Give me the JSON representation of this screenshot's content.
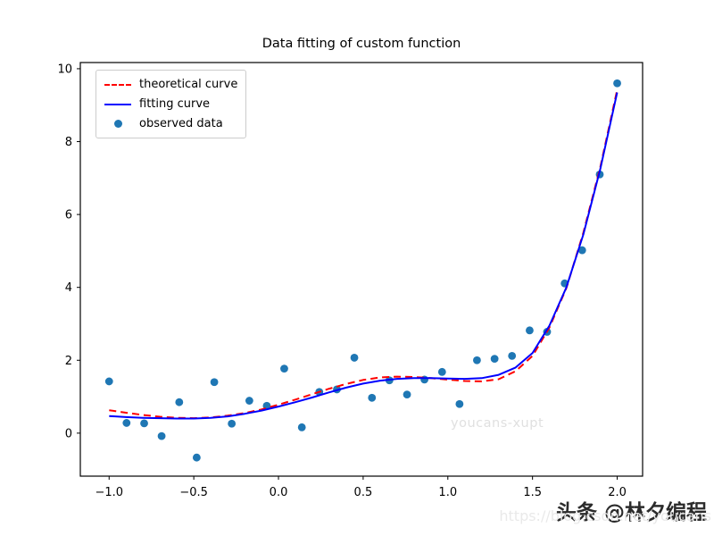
{
  "figure": {
    "title": "Data fitting of custom function"
  },
  "colors": {
    "theoretical_curve": "#ff0000",
    "fitting_curve": "#0000ff",
    "observed_data": "#1f77b4",
    "axis": "#000000",
    "legend_border": "#cccccc",
    "watermark_gray": "#e0e0e0"
  },
  "watermarks": {
    "plot": "youcans-xupt",
    "url": "https://blog.csdn.net/youcans",
    "badge": "头条 @林夕编程"
  },
  "chart_data": {
    "type": "line",
    "title": "Data fitting of custom function",
    "xlabel": "",
    "ylabel": "",
    "xlim": [
      -1.17,
      2.15
    ],
    "ylim": [
      -1.18,
      10.17
    ],
    "x_tick_values": [
      -1.0,
      -0.5,
      0.0,
      0.5,
      1.0,
      1.5,
      2.0
    ],
    "x_tick_labels": [
      "−1.0",
      "−0.5",
      "0.0",
      "0.5",
      "1.0",
      "1.5",
      "2.0"
    ],
    "y_tick_values": [
      0,
      2,
      4,
      6,
      8,
      10
    ],
    "y_tick_labels": [
      "0",
      "2",
      "4",
      "6",
      "8",
      "10"
    ],
    "grid": false,
    "legend_position": "upper left",
    "series": [
      {
        "name": "theoretical curve",
        "type": "line",
        "style": "dashed",
        "color": "#ff0000",
        "x": [
          -1.0,
          -0.9,
          -0.8,
          -0.7,
          -0.6,
          -0.5,
          -0.4,
          -0.3,
          -0.2,
          -0.1,
          0.0,
          0.1,
          0.2,
          0.3,
          0.4,
          0.5,
          0.6,
          0.7,
          0.8,
          0.9,
          1.0,
          1.1,
          1.2,
          1.3,
          1.4,
          1.5,
          1.6,
          1.7,
          1.8,
          1.9,
          2.0
        ],
        "y": [
          0.63,
          0.56,
          0.5,
          0.45,
          0.42,
          0.41,
          0.43,
          0.48,
          0.55,
          0.65,
          0.78,
          0.92,
          1.07,
          1.22,
          1.35,
          1.46,
          1.53,
          1.55,
          1.54,
          1.51,
          1.47,
          1.43,
          1.42,
          1.48,
          1.7,
          2.12,
          2.9,
          3.98,
          5.5,
          7.3,
          9.42
        ]
      },
      {
        "name": "fitting curve",
        "type": "line",
        "style": "solid",
        "color": "#0000ff",
        "x": [
          -1.0,
          -0.9,
          -0.8,
          -0.7,
          -0.6,
          -0.5,
          -0.4,
          -0.3,
          -0.2,
          -0.1,
          0.0,
          0.1,
          0.2,
          0.3,
          0.4,
          0.5,
          0.6,
          0.7,
          0.8,
          0.9,
          1.0,
          1.1,
          1.2,
          1.3,
          1.4,
          1.5,
          1.6,
          1.7,
          1.8,
          1.9,
          2.0
        ],
        "y": [
          0.47,
          0.44,
          0.42,
          0.41,
          0.4,
          0.4,
          0.42,
          0.46,
          0.53,
          0.62,
          0.73,
          0.85,
          0.98,
          1.12,
          1.25,
          1.36,
          1.44,
          1.49,
          1.51,
          1.51,
          1.5,
          1.49,
          1.51,
          1.6,
          1.8,
          2.2,
          2.95,
          4.0,
          5.45,
          7.25,
          9.35
        ]
      },
      {
        "name": "observed data",
        "type": "scatter",
        "color": "#1f77b4",
        "x": [
          -1.0,
          -0.897,
          -0.793,
          -0.69,
          -0.586,
          -0.483,
          -0.379,
          -0.276,
          -0.172,
          -0.069,
          0.034,
          0.138,
          0.241,
          0.345,
          0.448,
          0.552,
          0.655,
          0.759,
          0.862,
          0.966,
          1.069,
          1.172,
          1.276,
          1.379,
          1.483,
          1.586,
          1.69,
          1.793,
          1.897,
          2.0
        ],
        "y": [
          1.42,
          0.28,
          0.27,
          -0.08,
          0.85,
          -0.67,
          1.4,
          0.26,
          0.89,
          0.75,
          1.77,
          0.16,
          1.13,
          1.2,
          2.07,
          0.97,
          1.45,
          1.06,
          1.47,
          1.68,
          0.8,
          2.0,
          2.04,
          2.12,
          2.82,
          2.78,
          4.11,
          5.02,
          7.1,
          9.6
        ]
      }
    ]
  }
}
